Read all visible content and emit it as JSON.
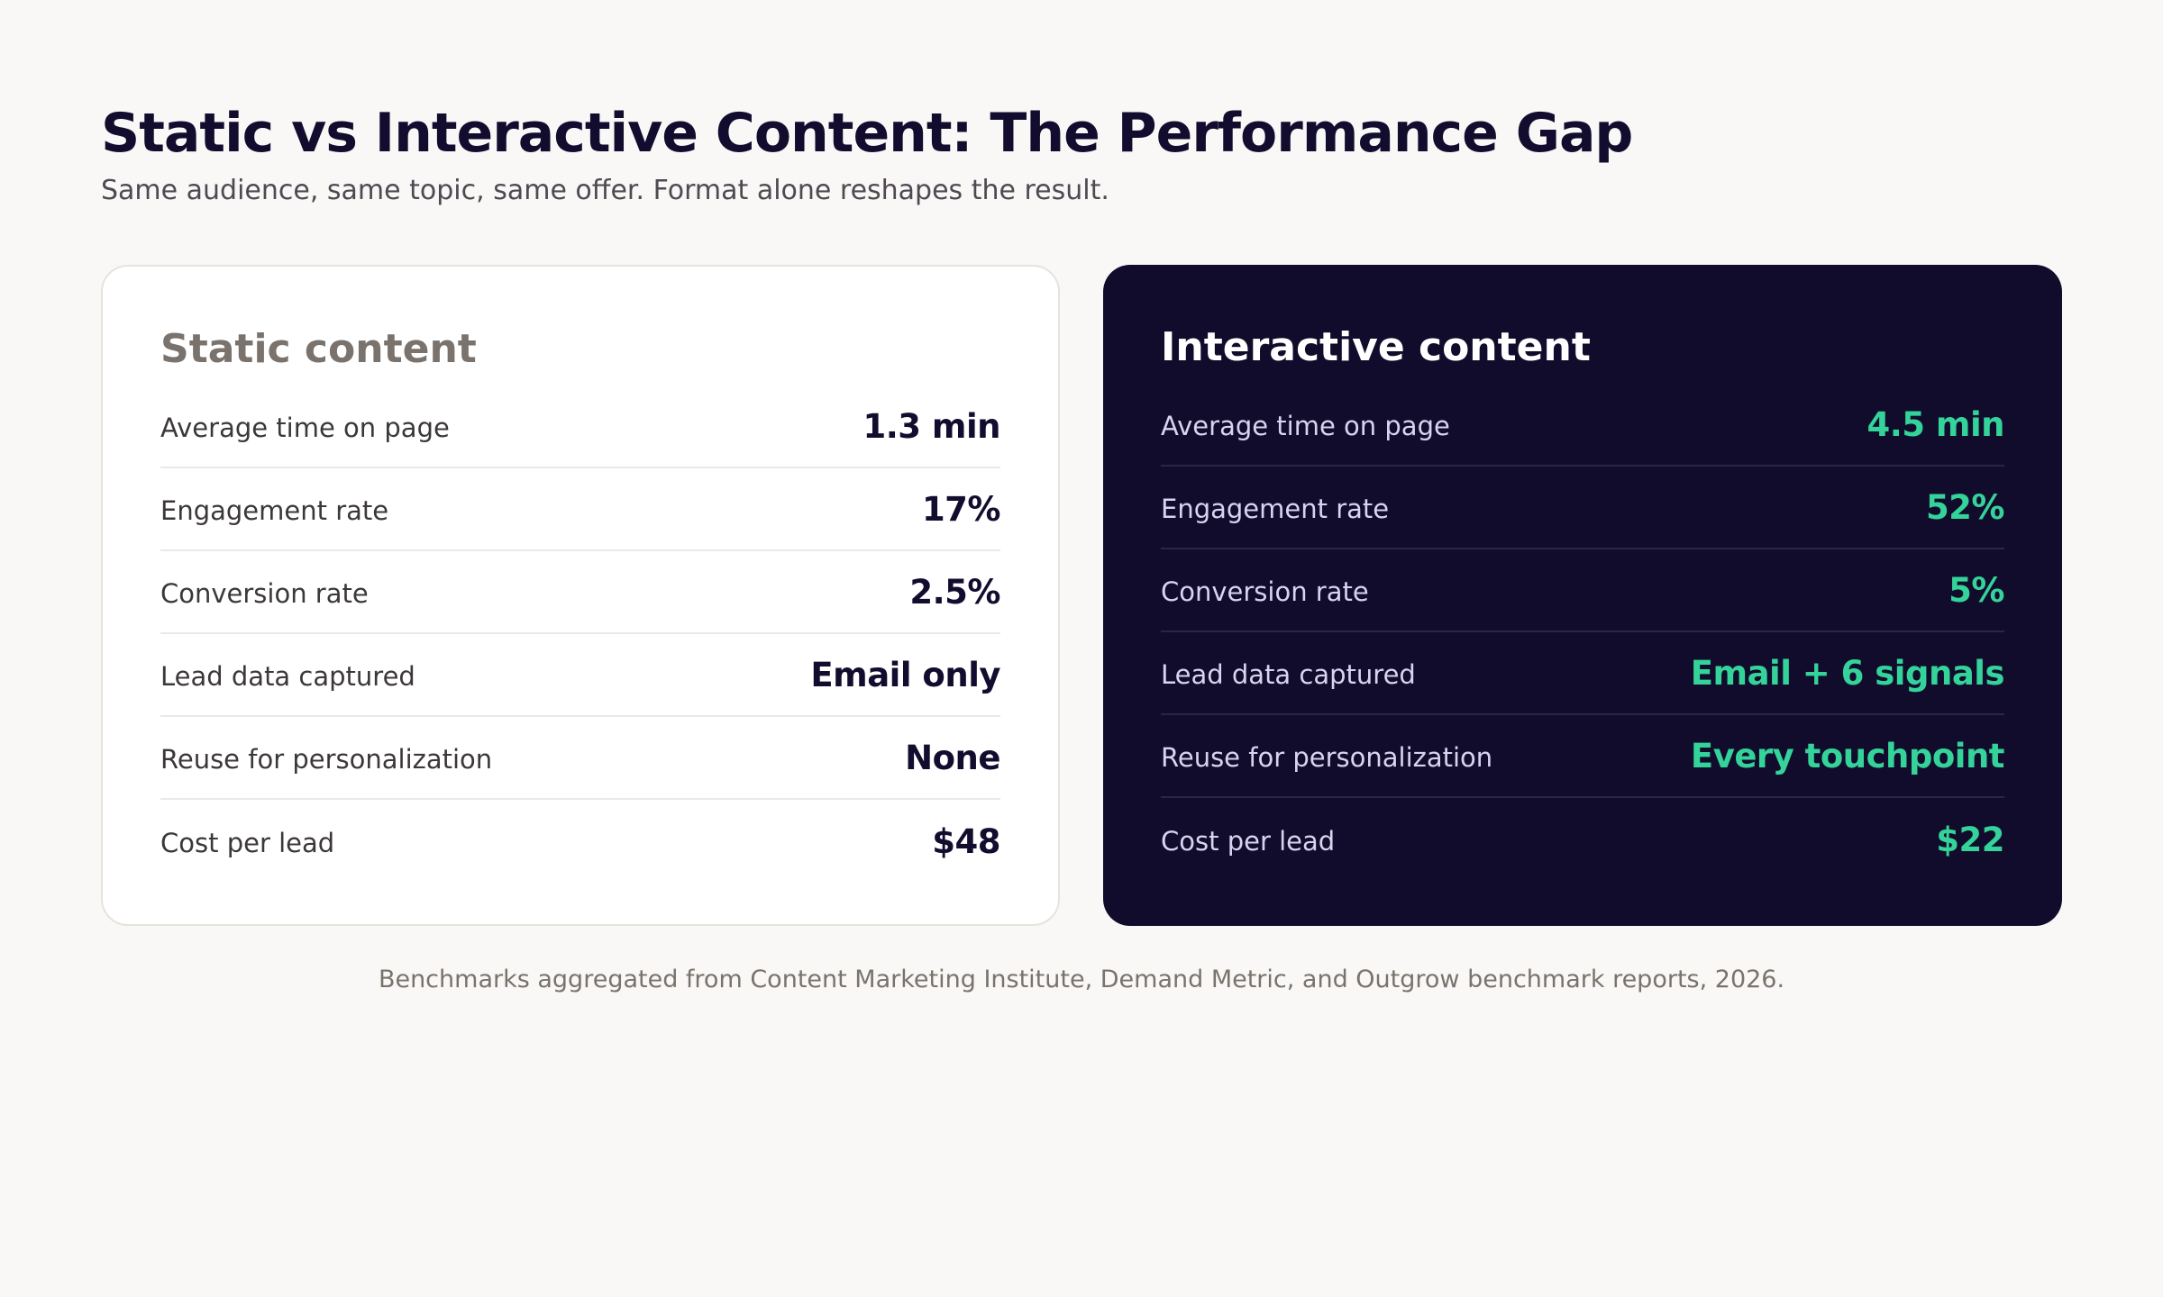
{
  "header": {
    "title": "Static vs Interactive Content: The Performance Gap",
    "subtitle": "Same audience, same topic, same offer. Format alone reshapes the result."
  },
  "static_card": {
    "title": "Static content",
    "rows": [
      {
        "label": "Average time on page",
        "value": "1.3 min"
      },
      {
        "label": "Engagement rate",
        "value": "17%"
      },
      {
        "label": "Conversion rate",
        "value": "2.5%"
      },
      {
        "label": "Lead data captured",
        "value": "Email only"
      },
      {
        "label": "Reuse for personalization",
        "value": "None"
      },
      {
        "label": "Cost per lead",
        "value": "$48"
      }
    ]
  },
  "interactive_card": {
    "title": "Interactive content",
    "rows": [
      {
        "label": "Average time on page",
        "value": "4.5 min"
      },
      {
        "label": "Engagement rate",
        "value": "52%"
      },
      {
        "label": "Conversion rate",
        "value": "5%"
      },
      {
        "label": "Lead data captured",
        "value": "Email + 6 signals"
      },
      {
        "label": "Reuse for personalization",
        "value": "Every touchpoint"
      },
      {
        "label": "Cost per lead",
        "value": "$22"
      }
    ]
  },
  "footnote": "Benchmarks aggregated from Content Marketing Institute, Demand Metric, and Outgrow benchmark reports, 2026.",
  "colors": {
    "background": "#f9f8f6",
    "title": "#120d2e",
    "interactive_card_bg": "#120c2c",
    "interactive_accent": "#34d39a",
    "static_card_title": "#7a726c"
  }
}
